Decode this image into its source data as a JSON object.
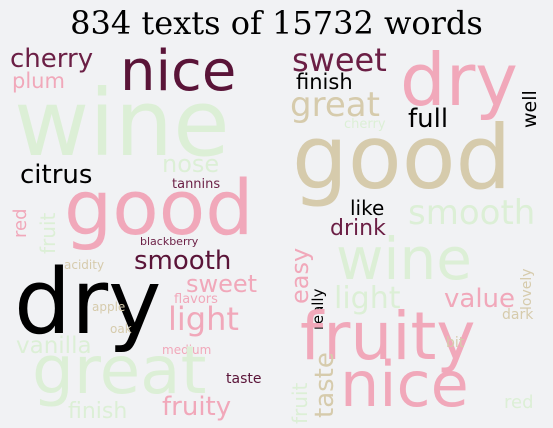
{
  "title": "834 texts of 15732 words",
  "colors": {
    "background": "#f1f2f4",
    "very_light_green": "#dcefd6",
    "light_green": "#d3ebcb",
    "tan": "#d6cbac",
    "pink": "#ef9fb4",
    "light_pink": "#f1a8ba",
    "maroon": "#6b1f45",
    "dark_maroon": "#5a1438",
    "black": "#000000"
  },
  "left_cloud": [
    {
      "word": "wine",
      "color": "#dcefd6"
    },
    {
      "word": "nice",
      "color": "#5a1438"
    },
    {
      "word": "cherry",
      "color": "#6b1f45"
    },
    {
      "word": "plum",
      "color": "#f1a8ba"
    },
    {
      "word": "good",
      "color": "#f1a8ba"
    },
    {
      "word": "nose",
      "color": "#dcefd6"
    },
    {
      "word": "citrus",
      "color": "#000000"
    },
    {
      "word": "tannins",
      "color": "#6b1f45"
    },
    {
      "word": "red",
      "color": "#f1a8ba"
    },
    {
      "word": "fruit",
      "color": "#dcefd6"
    },
    {
      "word": "blackberry",
      "color": "#6b1f45"
    },
    {
      "word": "smooth",
      "color": "#5a1438"
    },
    {
      "word": "acidity",
      "color": "#d6cbac"
    },
    {
      "word": "sweet",
      "color": "#f1a8ba"
    },
    {
      "word": "dry",
      "color": "#000000"
    },
    {
      "word": "flavors",
      "color": "#f1a8ba"
    },
    {
      "word": "apple",
      "color": "#d6cbac"
    },
    {
      "word": "light",
      "color": "#f1a8ba"
    },
    {
      "word": "oak",
      "color": "#d6cbac"
    },
    {
      "word": "vanilla",
      "color": "#dcefd6"
    },
    {
      "word": "medium",
      "color": "#f1a8ba"
    },
    {
      "word": "great",
      "color": "#dcefd6"
    },
    {
      "word": "taste",
      "color": "#5a1438"
    },
    {
      "word": "finish",
      "color": "#dcefd6"
    },
    {
      "word": "fruity",
      "color": "#f1a8ba"
    }
  ],
  "right_cloud": [
    {
      "word": "sweet",
      "color": "#6b1f45"
    },
    {
      "word": "dry",
      "color": "#f1a8ba"
    },
    {
      "word": "finish",
      "color": "#000000"
    },
    {
      "word": "well",
      "color": "#000000"
    },
    {
      "word": "great",
      "color": "#d6cbac"
    },
    {
      "word": "full",
      "color": "#000000"
    },
    {
      "word": "cherry",
      "color": "#dcefd6"
    },
    {
      "word": "good",
      "color": "#d6cbac"
    },
    {
      "word": "smooth",
      "color": "#dcefd6"
    },
    {
      "word": "like",
      "color": "#000000"
    },
    {
      "word": "drink",
      "color": "#6b1f45"
    },
    {
      "word": "easy",
      "color": "#f1a8ba"
    },
    {
      "word": "really",
      "color": "#000000"
    },
    {
      "word": "wine",
      "color": "#dcefd6"
    },
    {
      "word": "lovely",
      "color": "#d6cbac"
    },
    {
      "word": "light",
      "color": "#dcefd6"
    },
    {
      "word": "value",
      "color": "#f1a8ba"
    },
    {
      "word": "dark",
      "color": "#d6cbac"
    },
    {
      "word": "fruity",
      "color": "#f1a8ba"
    },
    {
      "word": "bit",
      "color": "#d6cbac"
    },
    {
      "word": "taste",
      "color": "#d6cbac"
    },
    {
      "word": "fruit",
      "color": "#dcefd6"
    },
    {
      "word": "nice",
      "color": "#f1a8ba"
    },
    {
      "word": "red",
      "color": "#dcefd6"
    }
  ]
}
